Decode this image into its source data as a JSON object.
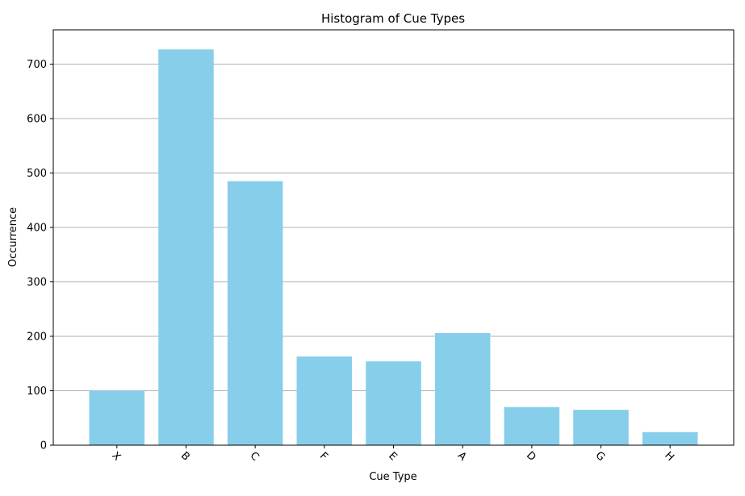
{
  "chart_data": {
    "type": "bar",
    "title": "Histogram of Cue Types",
    "xlabel": "Cue Type",
    "ylabel": "Occurrence",
    "categories": [
      "X",
      "B",
      "C",
      "F",
      "E",
      "A",
      "D",
      "G",
      "H"
    ],
    "values": [
      100,
      727,
      485,
      163,
      154,
      206,
      70,
      65,
      24
    ],
    "ylim": [
      0,
      763
    ],
    "yticks": [
      0,
      100,
      200,
      300,
      400,
      500,
      600,
      700
    ],
    "grid": "y-axis",
    "bar_color": "#87CEEB",
    "grid_color": "#b0b0b0",
    "xtick_rotation": 45
  }
}
